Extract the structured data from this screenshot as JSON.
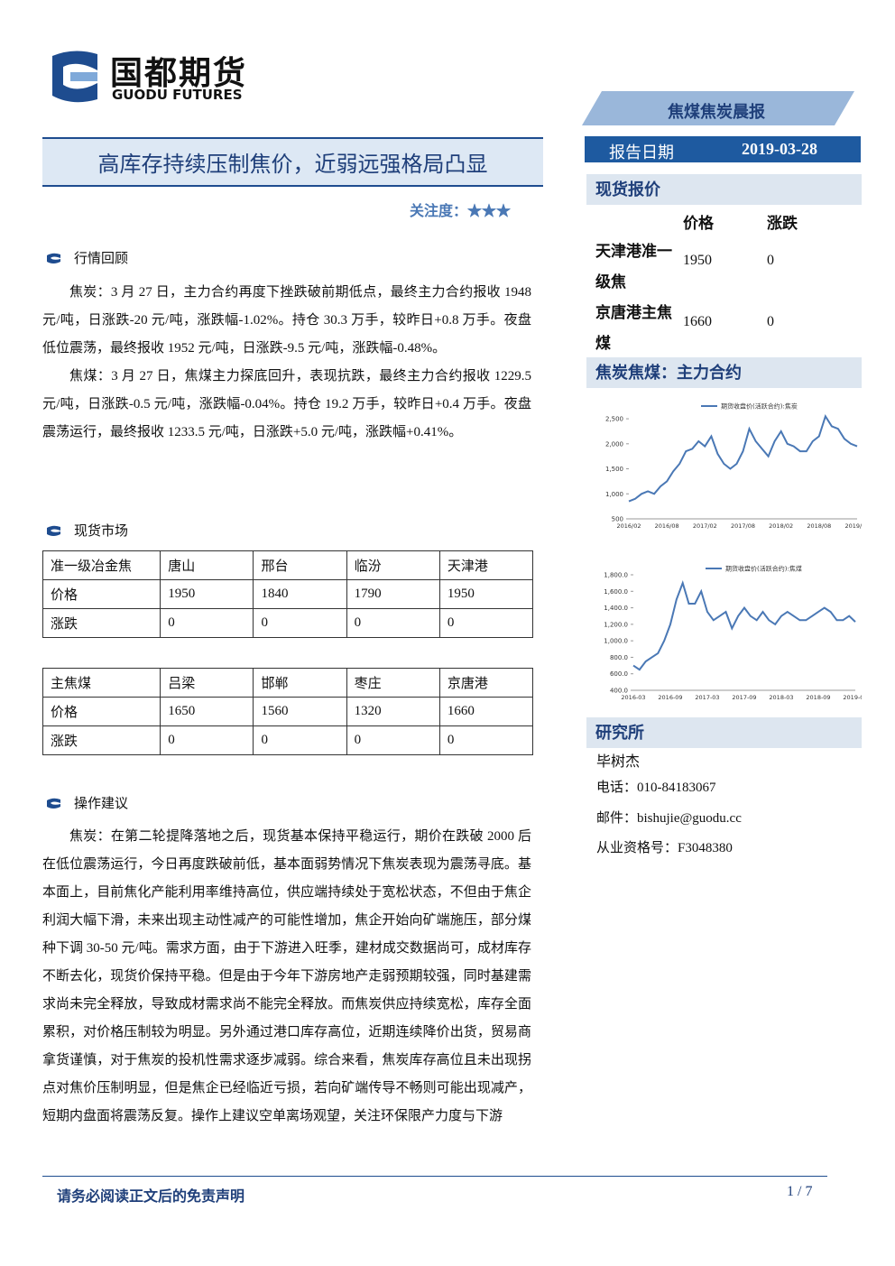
{
  "header": {
    "logo_cn": "国都期货",
    "logo_en": "GUODU FUTURES",
    "report_name": "焦煤焦炭晨报",
    "date_label": "报告日期",
    "date": "2019-03-28"
  },
  "title": "高库存持续压制焦价，近弱远强格局凸显",
  "attention": "关注度：★★★",
  "market_review": {
    "heading": "行情回顾",
    "paragraphs": [
      "焦炭：3 月 27 日，主力合约再度下挫跌破前期低点，最终主力合约报收 1948 元/吨，日涨跌-20 元/吨，涨跌幅-1.02%。持仓 30.3 万手，较昨日+0.8 万手。夜盘低位震荡，最终报收 1952 元/吨，日涨跌-9.5 元/吨，涨跌幅-0.48%。",
      "焦煤：3 月 27 日，焦煤主力探底回升，表现抗跌，最终主力合约报收 1229.5 元/吨，日涨跌-0.5 元/吨，涨跌幅-0.04%。持仓 19.2 万手，较昨日+0.4 万手。夜盘震荡运行，最终报收 1233.5 元/吨，日涨跌+5.0 元/吨，涨跌幅+0.41%。"
    ]
  },
  "spot_market": {
    "heading": "现货市场",
    "tables": [
      {
        "rows": [
          [
            "准一级冶金焦",
            "唐山",
            "邢台",
            "临汾",
            "天津港"
          ],
          [
            "价格",
            1950,
            1840,
            1790,
            1950
          ],
          [
            "涨跌",
            0,
            0,
            0,
            0
          ]
        ]
      },
      {
        "rows": [
          [
            "主焦煤",
            "吕梁",
            "邯郸",
            "枣庄",
            "京唐港"
          ],
          [
            "价格",
            1650,
            1560,
            1320,
            1660
          ],
          [
            "涨跌",
            0,
            0,
            0,
            0
          ]
        ]
      }
    ]
  },
  "advice": {
    "heading": "操作建议",
    "paragraphs": [
      "焦炭：在第二轮提降落地之后，现货基本保持平稳运行，期价在跌破 2000 后在低位震荡运行，今日再度跌破前低，基本面弱势情况下焦炭表现为震荡寻底。基本面上，目前焦化产能利用率维持高位，供应端持续处于宽松状态，不但由于焦企利润大幅下滑，未来出现主动性减产的可能性增加，焦企开始向矿端施压，部分煤种下调 30-50 元/吨。需求方面，由于下游进入旺季，建材成交数据尚可，成材库存不断去化，现货价保持平稳。但是由于今年下游房地产走弱预期较强，同时基建需求尚未完全释放，导致成材需求尚不能完全释放。而焦炭供应持续宽松，库存全面累积，对价格压制较为明显。另外通过港口库存高位，近期连续降价出货，贸易商拿货谨慎，对于焦炭的投机性需求逐步减弱。综合来看，焦炭库存高位且未出现拐点对焦价压制明显，但是焦企已经临近亏损，若向矿端传导不畅则可能出现减产，短期内盘面将震荡反复。操作上建议空单离场观望，关注环保限产力度与下游"
    ]
  },
  "spot_quote": {
    "heading": "现货报价",
    "columns": [
      "价格",
      "涨跌"
    ],
    "rows": [
      {
        "name": "天津港准一级焦",
        "price": 1950,
        "change": 0
      },
      {
        "name": "京唐港主焦煤",
        "price": 1660,
        "change": 0
      }
    ]
  },
  "futures_heading": "焦炭焦煤：主力合约",
  "chart_data": [
    {
      "type": "line",
      "categories": [
        "2016/02",
        null,
        null,
        null,
        null,
        null,
        "2016/08",
        null,
        null,
        null,
        null,
        null,
        "2017/02",
        null,
        null,
        null,
        null,
        null,
        "2017/08",
        null,
        null,
        null,
        null,
        null,
        "2018/02",
        null,
        null,
        null,
        null,
        null,
        "2018/08",
        null,
        null,
        null,
        null,
        null,
        "2019/02"
      ],
      "series": [
        {
          "name": "期货收盘价(活跃合约):焦炭",
          "color": "#4a78b5",
          "values": [
            850,
            900,
            1000,
            1050,
            1000,
            1150,
            1250,
            1450,
            1600,
            1850,
            1900,
            2050,
            1950,
            2150,
            1800,
            1600,
            1500,
            1600,
            1850,
            2300,
            2050,
            1900,
            1750,
            2050,
            2250,
            2000,
            1950,
            1850,
            1850,
            2050,
            2150,
            2550,
            2350,
            2300,
            2100,
            2000,
            1950
          ]
        }
      ],
      "ylim": [
        500,
        2700
      ],
      "yticks": [
        500,
        {
          "value": 1000,
          "label": "1,000"
        },
        {
          "value": 1500,
          "label": "1,500"
        },
        {
          "value": 2000,
          "label": "2,000"
        },
        {
          "value": 2500,
          "label": "2,500"
        }
      ]
    },
    {
      "type": "line",
      "categories": [
        "2016-03",
        null,
        null,
        null,
        null,
        null,
        "2016-09",
        null,
        null,
        null,
        null,
        null,
        "2017-03",
        null,
        null,
        null,
        null,
        null,
        "2017-09",
        null,
        null,
        null,
        null,
        null,
        "2018-03",
        null,
        null,
        null,
        null,
        null,
        "2018-09",
        null,
        null,
        null,
        null,
        null,
        "2019-03"
      ],
      "series": [
        {
          "name": "期货收盘价(活跃合约):焦煤",
          "color": "#4a78b5",
          "values": [
            700,
            650,
            750,
            800,
            850,
            1000,
            1200,
            1500,
            1700,
            1450,
            1450,
            1600,
            1350,
            1250,
            1300,
            1350,
            1150,
            1300,
            1400,
            1300,
            1250,
            1350,
            1250,
            1200,
            1300,
            1350,
            1300,
            1250,
            1250,
            1300,
            1350,
            1400,
            1350,
            1250,
            1250,
            1300,
            1230
          ]
        }
      ],
      "ylim": [
        400,
        1800
      ],
      "yticks": [
        {
          "value": 400,
          "label": "400.0"
        },
        {
          "value": 600,
          "label": "600.0"
        },
        {
          "value": 800,
          "label": "800.0"
        },
        {
          "value": 1000,
          "label": "1,000.0"
        },
        {
          "value": 1200,
          "label": "1,200.0"
        },
        {
          "value": 1400,
          "label": "1,400.0"
        },
        {
          "value": 1600,
          "label": "1,600.0"
        },
        {
          "value": 1800,
          "label": "1,800.0"
        }
      ]
    }
  ],
  "research": {
    "heading": "研究所",
    "analyst": "毕树杰",
    "phone": "电话：010-84183067",
    "email": "邮件：bishujie@guodu.cc",
    "license": "从业资格号：F3048380"
  },
  "footer": {
    "disclaimer": "请务必阅读正文后的免责声明",
    "page": "1 / 7"
  }
}
